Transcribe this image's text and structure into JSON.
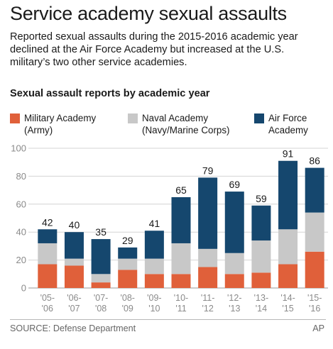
{
  "title": "Service academy sexual assaults",
  "subtitle": "Reported sexual assaults during the 2015-2016 academic year declined at the Air Force Academy but increased at the U.S. military’s two other service academies.",
  "source": "SOURCE: Defense Department",
  "credit": "AP",
  "chart_data": {
    "type": "bar",
    "stacked": true,
    "title": "Sexual assault reports by academic year",
    "xlabel": "",
    "ylabel": "",
    "ylim": [
      0,
      100
    ],
    "yticks": [
      0,
      20,
      40,
      60,
      80,
      100
    ],
    "grid": true,
    "legend": "top",
    "categories": [
      [
        "'05-",
        "'06"
      ],
      [
        "'06-",
        "'07"
      ],
      [
        "'07-",
        "'08"
      ],
      [
        "'08-",
        "'09"
      ],
      [
        "'09-",
        "'10"
      ],
      [
        "'10-",
        "'11"
      ],
      [
        "'11-",
        "'12"
      ],
      [
        "'12-",
        "'13"
      ],
      [
        "'13-",
        "'14"
      ],
      [
        "'14-",
        "'15"
      ],
      [
        "'15-",
        "'16"
      ]
    ],
    "totals": [
      42,
      40,
      35,
      29,
      41,
      65,
      79,
      69,
      59,
      91,
      86
    ],
    "series": [
      {
        "name": [
          "Military Academy",
          "(Army)"
        ],
        "color": "#e0603a",
        "values": [
          17,
          16,
          4,
          13,
          10,
          10,
          15,
          10,
          11,
          17,
          26
        ]
      },
      {
        "name": [
          "Naval Academy",
          "(Navy/Marine Corps)"
        ],
        "color": "#c8c8c8",
        "values": [
          15,
          5,
          6,
          8,
          11,
          22,
          13,
          15,
          23,
          25,
          28
        ]
      },
      {
        "name": [
          "Air Force",
          "Academy"
        ],
        "color": "#15476e",
        "values": [
          10,
          19,
          25,
          8,
          20,
          33,
          51,
          44,
          25,
          49,
          32
        ]
      }
    ]
  }
}
